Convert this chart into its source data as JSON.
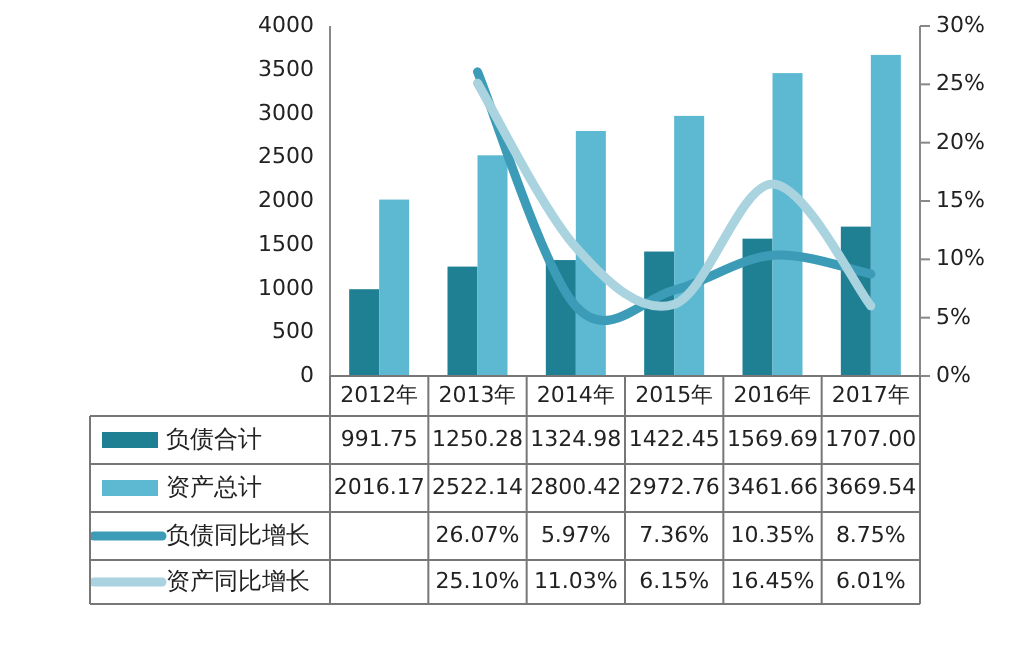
{
  "chart_data": {
    "type": "bar",
    "categories": [
      "2012年",
      "2013年",
      "2014年",
      "2015年",
      "2016年",
      "2017年"
    ],
    "ylim": [
      0,
      4000
    ],
    "yticks": [
      0,
      500,
      1000,
      1500,
      2000,
      2500,
      3000,
      3500,
      4000
    ],
    "y2lim": [
      0,
      30
    ],
    "y2ticks": [
      {
        "value": 0,
        "label": "0%"
      },
      {
        "value": 5,
        "label": "5%"
      },
      {
        "value": 10,
        "label": "10%"
      },
      {
        "value": 15,
        "label": "15%"
      },
      {
        "value": 20,
        "label": "20%"
      },
      {
        "value": 25,
        "label": "25%"
      },
      {
        "value": 30,
        "label": "30%"
      }
    ],
    "grid": false,
    "legend": "bottom",
    "series": [
      {
        "name": "负债合计",
        "color": "#1f7f93",
        "values": [
          991.75,
          1250.28,
          1324.98,
          1422.45,
          1569.69,
          1707.0
        ],
        "value_labels": [
          "991.75",
          "1250.28",
          "1324.98",
          "1422.45",
          "1569.69",
          "1707.00"
        ]
      },
      {
        "name": "资产总计",
        "color": "#5cb9d1",
        "values": [
          2016.17,
          2522.14,
          2800.42,
          2972.76,
          3461.66,
          3669.54
        ],
        "value_labels": [
          "2016.17",
          "2522.14",
          "2800.42",
          "2972.76",
          "3461.66",
          "3669.54"
        ]
      },
      {
        "name": "负债同比增长",
        "type": "line",
        "axis": "y2",
        "color": "#3c9bb6",
        "values": [
          null,
          26.07,
          5.97,
          7.36,
          10.35,
          8.75
        ],
        "value_labels": [
          null,
          "26.07%",
          "5.97%",
          "7.36%",
          "10.35%",
          "8.75%"
        ]
      },
      {
        "name": "资产同比增长",
        "type": "line",
        "axis": "y2",
        "color": "#a9d3df",
        "values": [
          null,
          25.1,
          11.03,
          6.15,
          16.45,
          6.01
        ],
        "value_labels": [
          null,
          "25.10%",
          "11.03%",
          "6.15%",
          "16.45%",
          "6.01%"
        ]
      }
    ]
  }
}
